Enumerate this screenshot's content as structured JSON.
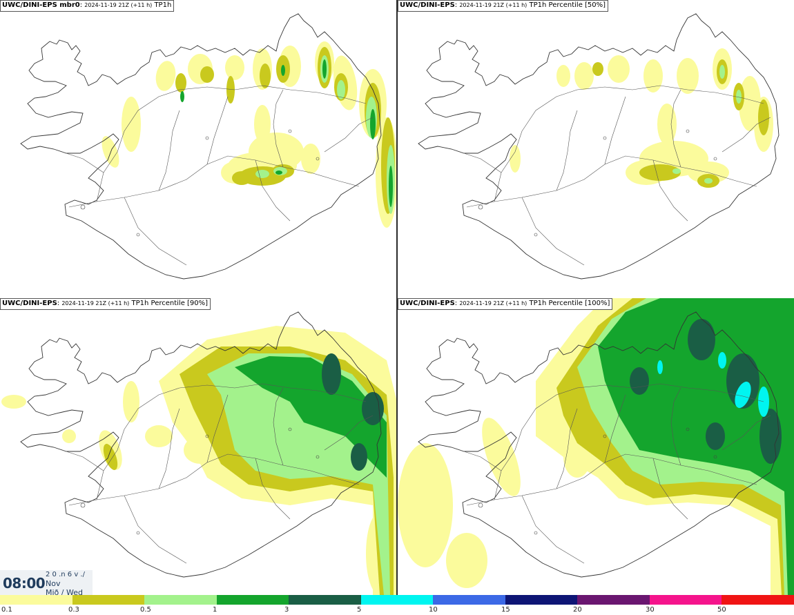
{
  "panels": [
    {
      "model": "UWC/DINI-EPS mbr0",
      "separator": ":",
      "time": "2024-11-19 21Z (+11 h)",
      "field": "TP1h"
    },
    {
      "model": "UWC/DINI-EPS",
      "separator": ":",
      "time": "2024-11-19 21Z (+11 h)",
      "field": "TP1h Percentile [50%]"
    },
    {
      "model": "UWC/DINI-EPS",
      "separator": ":",
      "time": "2024-11-19 21Z (+11 h)",
      "field": "TP1h Percentile [90%]"
    },
    {
      "model": "UWC/DINI-EPS",
      "separator": ":",
      "time": "2024-11-19 21Z (+11 h)",
      "field": "TP1h Percentile [100%]"
    }
  ],
  "clock": {
    "time": "08:00",
    "line1": "2 0 .n 6 v ./",
    "line2": "Nov",
    "line3": "Mið / Wed"
  },
  "legend": {
    "labels": [
      "0.1",
      "0.3",
      "0.5",
      "1",
      "3",
      "5",
      "10",
      "15",
      "20",
      "30",
      "50"
    ],
    "colors": [
      "#fbfb9c",
      "#c9c91e",
      "#a3f28c",
      "#14a52d",
      "#1a5e45",
      "#00f5f0",
      "#3c69e6",
      "#0e1575",
      "#6a1670",
      "#f5148c",
      "#f01414"
    ]
  },
  "precip_colors": {
    "light": "#fbfb9c",
    "olive": "#c9c91e",
    "lightgreen": "#a3f28c",
    "green": "#14a52d",
    "darkgreen": "#1a5e45",
    "cyan": "#00f5f0"
  }
}
